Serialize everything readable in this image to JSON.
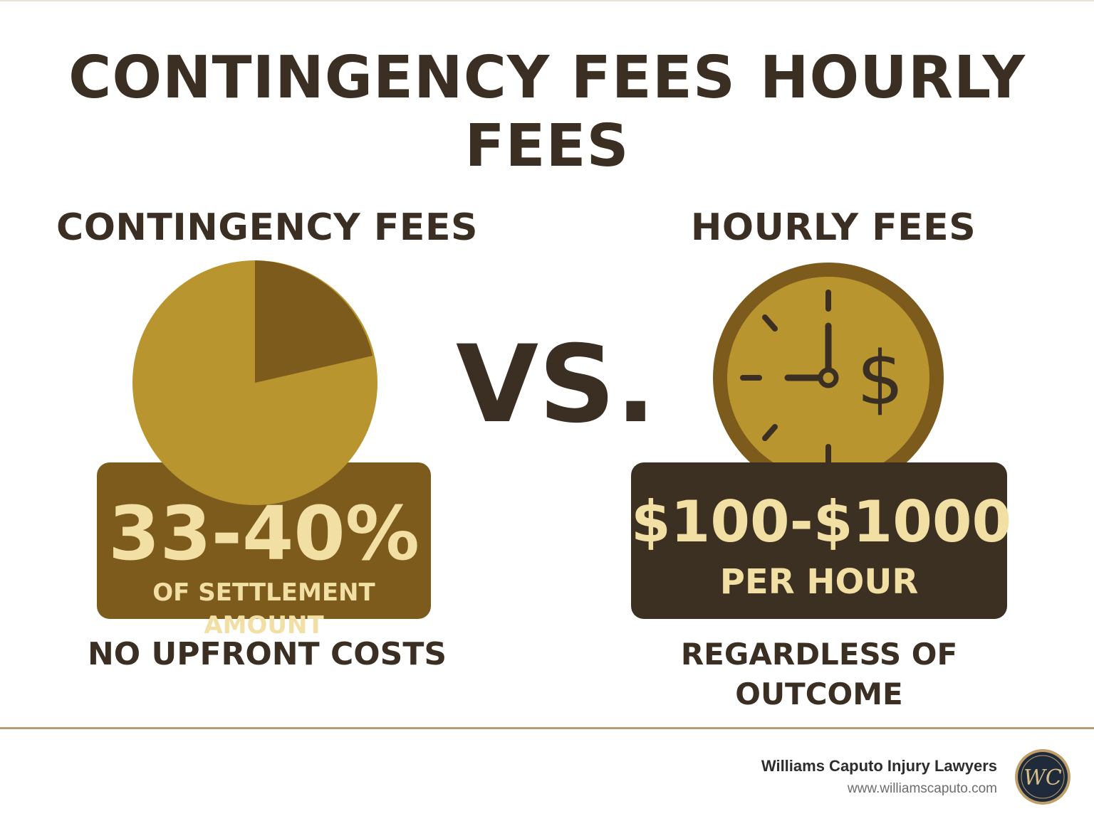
{
  "header": {
    "title_line1_a": "CONTINGENCY FEES",
    "title_line1_b": "HOURLY",
    "title_line2": "FEES"
  },
  "left": {
    "heading": "CONTINGENCY FEES",
    "value": "33-40%",
    "caption": "OF SETTLEMENT AMOUNT",
    "note": "NO UPFRONT COSTS",
    "icon": "pie-chart-icon"
  },
  "center": {
    "vs": "VS."
  },
  "right": {
    "heading": "HOURLY FEES",
    "value": "$100-$1000",
    "caption": "PER HOUR",
    "note": "REGARDLESS OF OUTCOME",
    "icon": "clock-dollar-icon",
    "clock_symbol": "$"
  },
  "footer": {
    "company": "Williams Caputo Injury Lawyers",
    "url": "www.williamscaputo.com",
    "logo_text": "WC",
    "logo_icon": "firm-seal-logo"
  },
  "colors": {
    "text_dark": "#3a2f22",
    "gold_light": "#b8952f",
    "gold_dark": "#7d5b1d",
    "box_dark": "#3b3022",
    "value_text": "#f1dfa4",
    "footer_rule": "#b99a72"
  }
}
